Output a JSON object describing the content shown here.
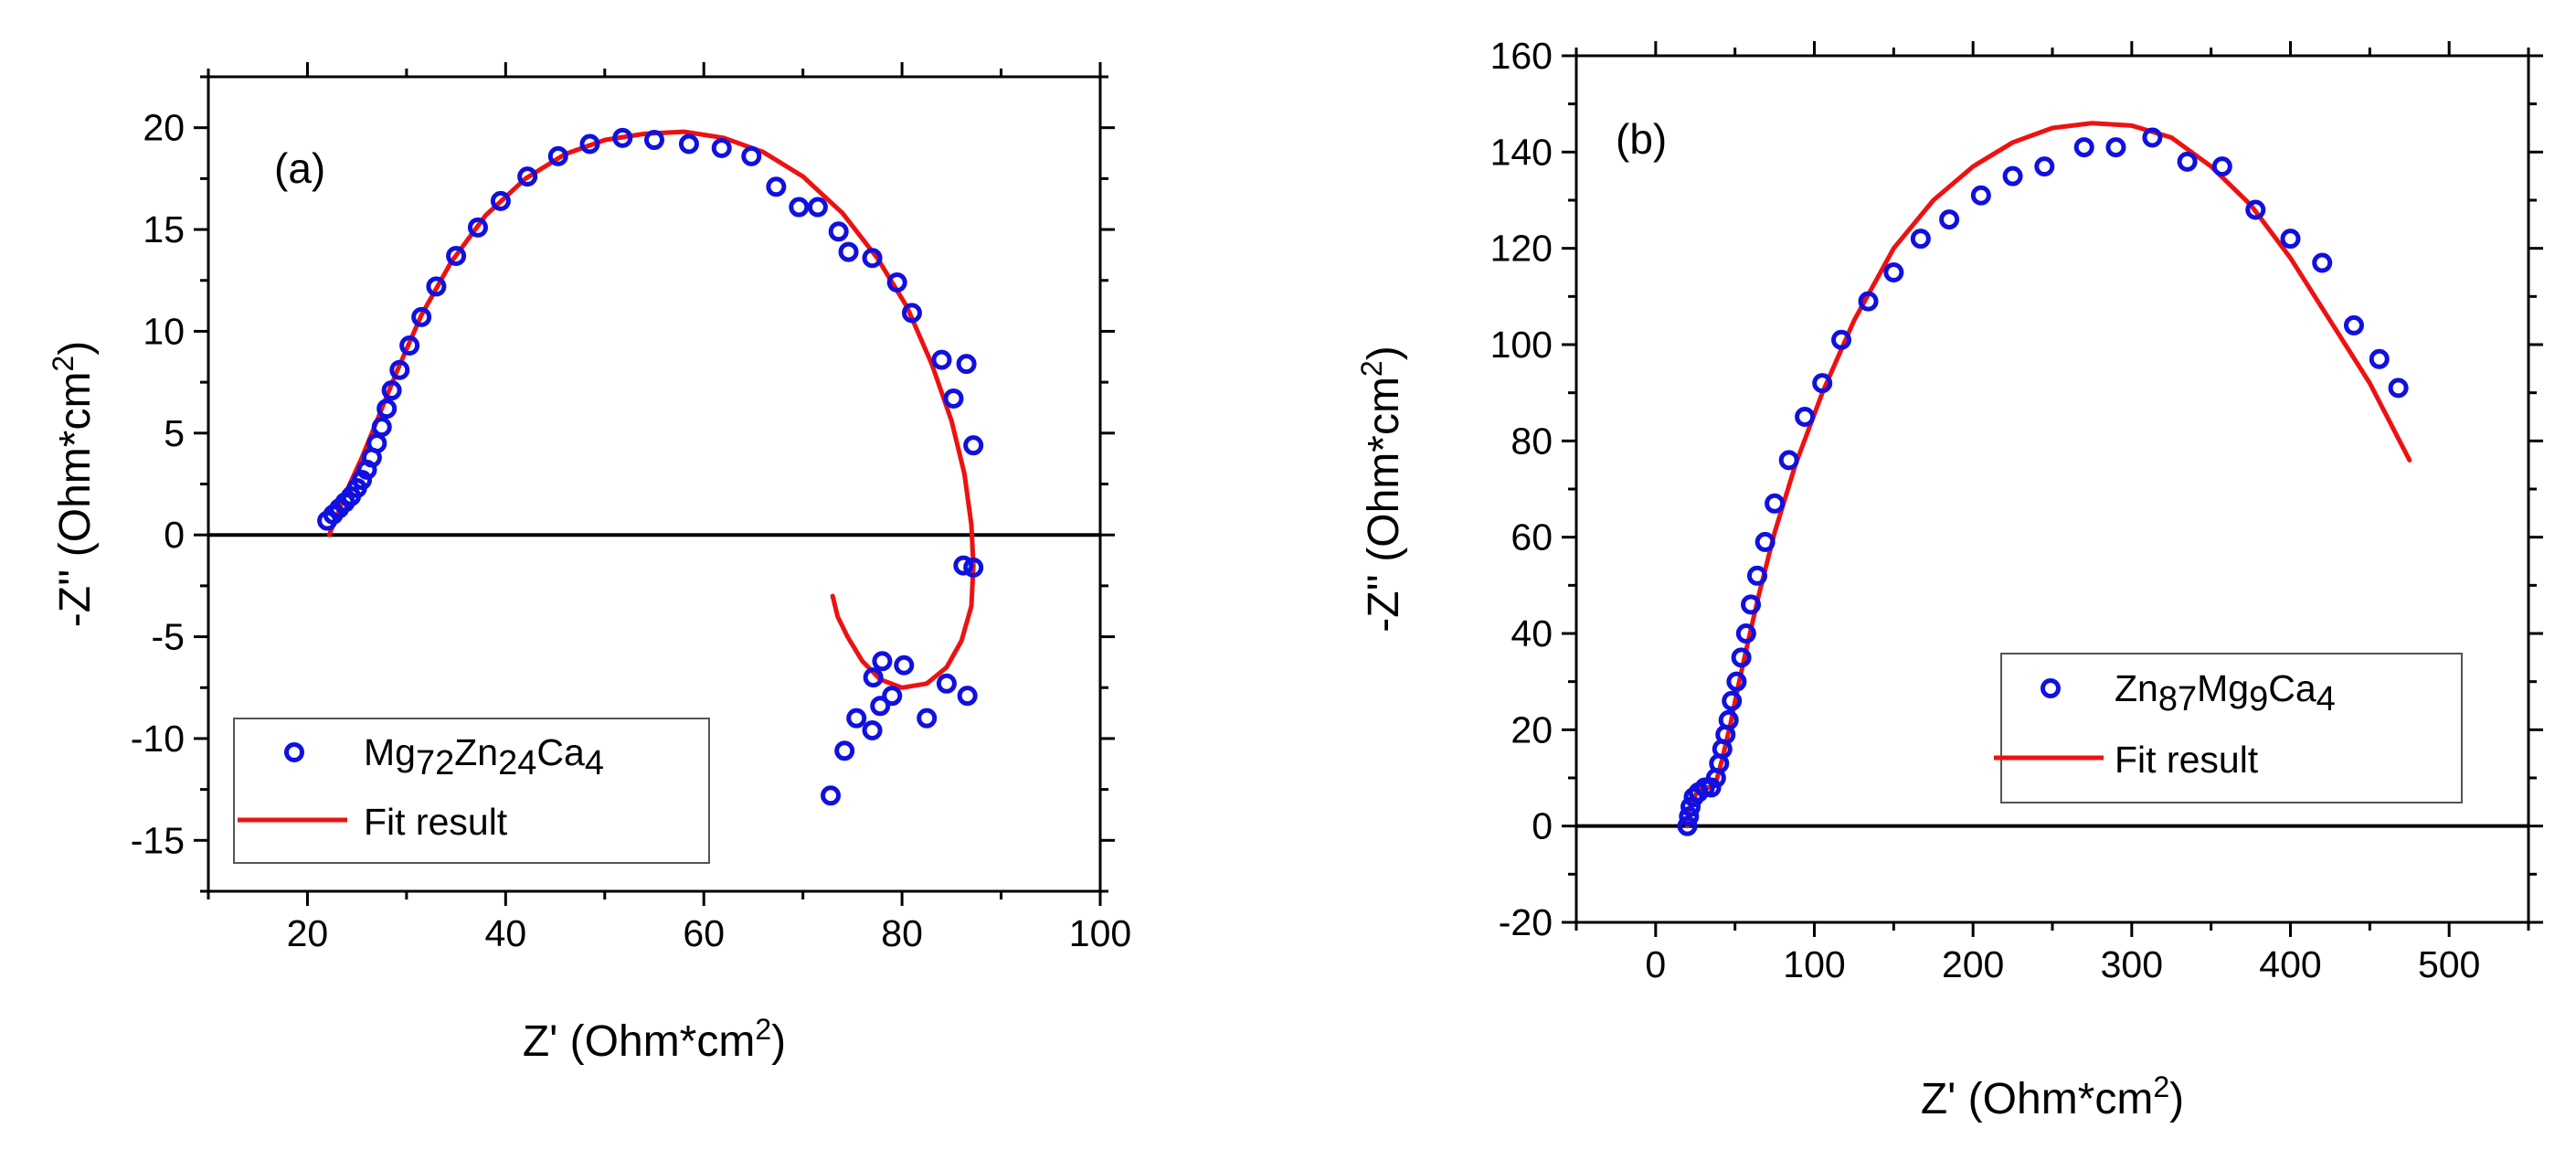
{
  "chart_data": [
    {
      "type": "scatter",
      "panel_label": "(a)",
      "xlabel": "Z' (Ohm*cm2)",
      "xlabel_main": "Z' (Ohm*cm",
      "xlabel_sup": "2",
      "xlabel_end": ")",
      "ylabel": "-Z'' (Ohm*cm2)",
      "ylabel_main": "-Z'' (Ohm*cm",
      "ylabel_sup": "2",
      "ylabel_end": ")",
      "xlim": [
        10,
        100
      ],
      "ylim": [
        -17.5,
        22.5
      ],
      "xticks": [
        20,
        40,
        60,
        80,
        100
      ],
      "yticks": [
        -15,
        -10,
        -5,
        0,
        5,
        10,
        15,
        20
      ],
      "xtick_labels": [
        "20",
        "40",
        "60",
        "80",
        "100"
      ],
      "ytick_labels": [
        "-15",
        "-10",
        "-5",
        "0",
        "5",
        "10",
        "15",
        "20"
      ],
      "zero_line": true,
      "legend_position": "bottom-left",
      "series": [
        {
          "name": "Mg72Zn24Ca4",
          "name_parts": [
            {
              "text": "Mg",
              "sub": false
            },
            {
              "text": "72",
              "sub": true
            },
            {
              "text": "Zn",
              "sub": false
            },
            {
              "text": "24",
              "sub": true
            },
            {
              "text": "Ca",
              "sub": false
            },
            {
              "text": "4",
              "sub": true
            }
          ],
          "style": "open-circle",
          "color": "#1010e0",
          "points": [
            [
              22.0,
              0.7
            ],
            [
              22.6,
              1.0
            ],
            [
              23.2,
              1.3
            ],
            [
              23.8,
              1.6
            ],
            [
              24.4,
              1.9
            ],
            [
              25.0,
              2.3
            ],
            [
              25.5,
              2.7
            ],
            [
              26.0,
              3.2
            ],
            [
              26.5,
              3.8
            ],
            [
              27.0,
              4.5
            ],
            [
              27.5,
              5.3
            ],
            [
              28.0,
              6.2
            ],
            [
              28.5,
              7.1
            ],
            [
              29.3,
              8.1
            ],
            [
              30.3,
              9.3
            ],
            [
              31.5,
              10.7
            ],
            [
              33.0,
              12.2
            ],
            [
              35.0,
              13.7
            ],
            [
              37.2,
              15.1
            ],
            [
              39.5,
              16.4
            ],
            [
              42.2,
              17.6
            ],
            [
              45.3,
              18.6
            ],
            [
              48.5,
              19.2
            ],
            [
              51.8,
              19.5
            ],
            [
              55.0,
              19.4
            ],
            [
              58.5,
              19.2
            ],
            [
              61.8,
              19.0
            ],
            [
              64.8,
              18.6
            ],
            [
              67.3,
              17.1
            ],
            [
              69.6,
              16.1
            ],
            [
              71.5,
              16.1
            ],
            [
              73.6,
              14.9
            ],
            [
              74.6,
              13.9
            ],
            [
              77.0,
              13.6
            ],
            [
              79.5,
              12.4
            ],
            [
              81.0,
              10.9
            ],
            [
              84.0,
              8.6
            ],
            [
              86.5,
              8.4
            ],
            [
              85.2,
              6.7
            ],
            [
              87.2,
              4.4
            ],
            [
              86.2,
              -1.5
            ],
            [
              87.2,
              -1.6
            ],
            [
              72.8,
              -12.8
            ],
            [
              74.2,
              -10.6
            ],
            [
              75.4,
              -9.0
            ],
            [
              77.0,
              -9.6
            ],
            [
              77.8,
              -8.4
            ],
            [
              79.0,
              -7.9
            ],
            [
              77.1,
              -7.0
            ],
            [
              78.0,
              -6.2
            ],
            [
              80.2,
              -6.4
            ],
            [
              82.5,
              -9.0
            ],
            [
              84.5,
              -7.3
            ],
            [
              86.6,
              -7.9
            ]
          ]
        },
        {
          "name": "Fit result",
          "style": "line",
          "color": "#ee1111",
          "points": [
            [
              22.2,
              0.0
            ],
            [
              23.0,
              1.0
            ],
            [
              24.0,
              2.2
            ],
            [
              25.5,
              3.8
            ],
            [
              27.0,
              5.6
            ],
            [
              29.0,
              8.0
            ],
            [
              31.5,
              10.8
            ],
            [
              34.5,
              13.4
            ],
            [
              38.0,
              15.7
            ],
            [
              42.0,
              17.5
            ],
            [
              46.0,
              18.7
            ],
            [
              50.0,
              19.4
            ],
            [
              54.0,
              19.7
            ],
            [
              58.0,
              19.8
            ],
            [
              62.0,
              19.5
            ],
            [
              66.0,
              18.8
            ],
            [
              70.0,
              17.6
            ],
            [
              74.0,
              15.8
            ],
            [
              77.5,
              13.6
            ],
            [
              80.5,
              11.2
            ],
            [
              83.0,
              8.4
            ],
            [
              85.0,
              5.6
            ],
            [
              86.3,
              3.0
            ],
            [
              87.0,
              0.5
            ],
            [
              87.2,
              -1.5
            ],
            [
              87.0,
              -3.5
            ],
            [
              86.0,
              -5.2
            ],
            [
              84.5,
              -6.5
            ],
            [
              82.5,
              -7.3
            ],
            [
              80.0,
              -7.5
            ],
            [
              77.8,
              -7.1
            ],
            [
              76.0,
              -6.2
            ],
            [
              74.5,
              -5.0
            ],
            [
              73.5,
              -4.0
            ],
            [
              73.0,
              -3.0
            ]
          ]
        }
      ]
    },
    {
      "type": "scatter",
      "panel_label": "(b)",
      "xlabel": "Z' (Ohm*cm2)",
      "xlabel_main": "Z' (Ohm*cm",
      "xlabel_sup": "2",
      "xlabel_end": ")",
      "ylabel": "-Z'' (Ohm*cm2)",
      "ylabel_main": "-Z'' (Ohm*cm",
      "ylabel_sup": "2",
      "ylabel_end": ")",
      "xlim": [
        -50,
        550
      ],
      "ylim": [
        -20,
        160
      ],
      "xticks": [
        0,
        100,
        200,
        300,
        400,
        500
      ],
      "yticks": [
        -20,
        0,
        20,
        40,
        60,
        80,
        100,
        120,
        140,
        160
      ],
      "xtick_labels": [
        "0",
        "100",
        "200",
        "300",
        "400",
        "500"
      ],
      "ytick_labels": [
        "-20",
        "0",
        "20",
        "40",
        "60",
        "80",
        "100",
        "120",
        "140",
        "160"
      ],
      "zero_line": true,
      "legend_position": "right-middle",
      "series": [
        {
          "name": "Zn87Mg9Ca4",
          "name_parts": [
            {
              "text": "Zn",
              "sub": false
            },
            {
              "text": "87",
              "sub": true
            },
            {
              "text": "Mg",
              "sub": false
            },
            {
              "text": "9",
              "sub": true
            },
            {
              "text": "Ca",
              "sub": false
            },
            {
              "text": "4",
              "sub": true
            }
          ],
          "style": "open-circle",
          "color": "#1010e0",
          "points": [
            [
              20,
              0
            ],
            [
              21,
              2
            ],
            [
              22,
              4
            ],
            [
              24,
              6
            ],
            [
              27,
              7
            ],
            [
              31,
              8
            ],
            [
              35,
              8
            ],
            [
              38,
              10
            ],
            [
              40,
              13
            ],
            [
              42,
              16
            ],
            [
              44,
              19
            ],
            [
              46,
              22
            ],
            [
              48,
              26
            ],
            [
              51,
              30
            ],
            [
              54,
              35
            ],
            [
              57,
              40
            ],
            [
              60,
              46
            ],
            [
              64,
              52
            ],
            [
              69,
              59
            ],
            [
              75,
              67
            ],
            [
              84,
              76
            ],
            [
              94,
              85
            ],
            [
              105,
              92
            ],
            [
              117,
              101
            ],
            [
              134,
              109
            ],
            [
              150,
              115
            ],
            [
              167,
              122
            ],
            [
              185,
              126
            ],
            [
              205,
              131
            ],
            [
              225,
              135
            ],
            [
              245,
              137
            ],
            [
              270,
              141
            ],
            [
              290,
              141
            ],
            [
              313,
              143
            ],
            [
              335,
              138
            ],
            [
              357,
              137
            ],
            [
              378,
              128
            ],
            [
              400,
              122
            ],
            [
              420,
              117
            ],
            [
              440,
              104
            ],
            [
              456,
              97
            ],
            [
              468,
              91
            ]
          ]
        },
        {
          "name": "Fit result",
          "style": "line",
          "color": "#ee1111",
          "points": [
            [
              20,
              0
            ],
            [
              21,
              3
            ],
            [
              23,
              5
            ],
            [
              26,
              7
            ],
            [
              30,
              8
            ],
            [
              35,
              8
            ],
            [
              38,
              9
            ],
            [
              42,
              14
            ],
            [
              47,
              21
            ],
            [
              52,
              29
            ],
            [
              58,
              38
            ],
            [
              65,
              48
            ],
            [
              75,
              61
            ],
            [
              88,
              75
            ],
            [
              105,
              90
            ],
            [
              125,
              105
            ],
            [
              150,
              120
            ],
            [
              175,
              130
            ],
            [
              200,
              137
            ],
            [
              225,
              142
            ],
            [
              250,
              145
            ],
            [
              275,
              146
            ],
            [
              300,
              145.5
            ],
            [
              325,
              143
            ],
            [
              350,
              137
            ],
            [
              375,
              129
            ],
            [
              400,
              118
            ],
            [
              425,
              105
            ],
            [
              450,
              92
            ],
            [
              475,
              76
            ]
          ]
        }
      ]
    }
  ]
}
